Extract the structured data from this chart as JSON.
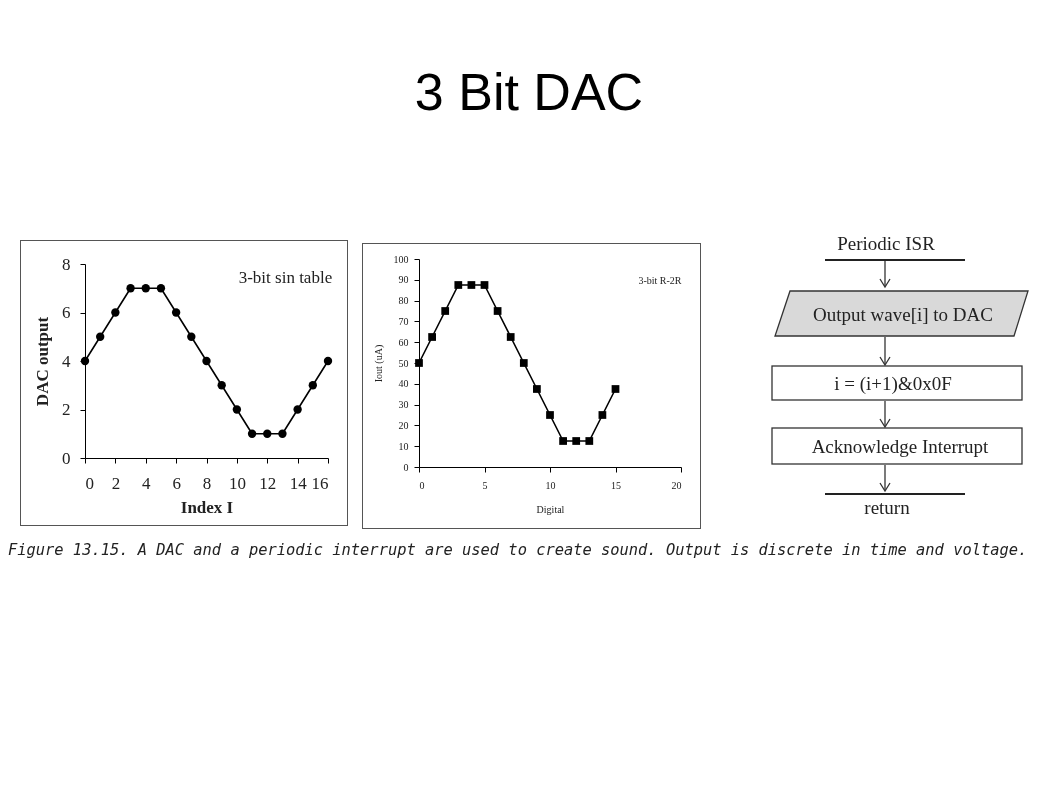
{
  "chart_data": [
    {
      "type": "line",
      "title": "3-bit sin table",
      "xlabel": "Index I",
      "ylabel": "DAC output",
      "x": [
        0,
        1,
        2,
        3,
        4,
        5,
        6,
        7,
        8,
        9,
        10,
        11,
        12,
        13,
        14,
        15,
        16
      ],
      "series": [
        {
          "color": "#000000",
          "values": [
            4,
            5,
            6,
            7,
            7,
            7,
            6,
            5,
            4,
            3,
            2,
            1,
            1,
            1,
            2,
            3,
            4
          ]
        }
      ],
      "xlim": [
        0,
        16
      ],
      "xticks": [
        0,
        2,
        4,
        6,
        8,
        10,
        12,
        14,
        16
      ],
      "ylim": [
        0,
        8
      ],
      "yticks": [
        0,
        2,
        4,
        6,
        8
      ],
      "grid": false,
      "legend": false,
      "marker": "circle",
      "line_style": "solid"
    },
    {
      "type": "line",
      "title": "3-bit R-2R",
      "xlabel": "Digital",
      "ylabel": "Iout (uA)",
      "x": [
        0,
        1,
        2,
        3,
        4,
        5,
        6,
        7,
        8,
        9,
        10,
        11,
        12,
        13,
        14,
        15
      ],
      "series": [
        {
          "color": "#000000",
          "values": [
            50,
            62.5,
            75,
            87.5,
            87.5,
            87.5,
            75,
            62.5,
            50,
            37.5,
            25,
            12.5,
            12.5,
            12.5,
            25,
            37.5
          ]
        }
      ],
      "xlim": [
        0,
        20
      ],
      "xticks": [
        0,
        5,
        10,
        15,
        20
      ],
      "ylim": [
        0,
        100
      ],
      "yticks": [
        0,
        10,
        20,
        30,
        40,
        50,
        60,
        70,
        80,
        90,
        100
      ],
      "grid": false,
      "legend": false,
      "marker": "square",
      "line_style": "solid"
    },
    {
      "type": "other",
      "title": "3 Bit DAC",
      "annotations": [
        "Periodic ISR",
        "Output wave[i] to DAC",
        "i = (i+1)&0x0F",
        "Acknowledge Interrupt",
        "return",
        "Figure 13.15. A DAC and a periodic interrupt are used to create sound. Output is discrete in time and voltage."
      ]
    }
  ]
}
